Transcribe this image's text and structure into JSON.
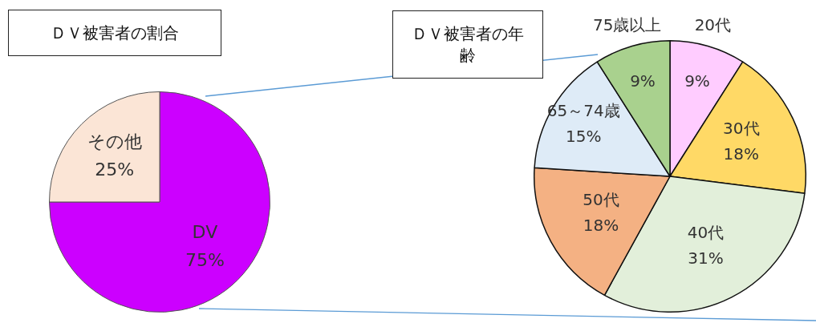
{
  "chart_data": [
    {
      "type": "pie",
      "title": "ＤＶ被害者の割合",
      "categories": [
        "DV",
        "その他"
      ],
      "values": [
        75,
        25
      ],
      "colors": [
        "#cc00ff",
        "#fbe5d6"
      ],
      "value_labels": [
        "75%",
        "25%"
      ],
      "legend": false
    },
    {
      "type": "pie",
      "title": "ＤＶ被害者の年齢",
      "categories": [
        "20代",
        "30代",
        "40代",
        "50代",
        "65～74歳",
        "75歳以上"
      ],
      "values": [
        9,
        18,
        31,
        18,
        15,
        9
      ],
      "colors": [
        "#ffccff",
        "#ffd966",
        "#e2efda",
        "#f4b183",
        "#deebf7",
        "#a9d18e"
      ],
      "value_labels": [
        "9%",
        "18%",
        "31%",
        "18%",
        "15%",
        "9%"
      ],
      "legend": false
    }
  ]
}
